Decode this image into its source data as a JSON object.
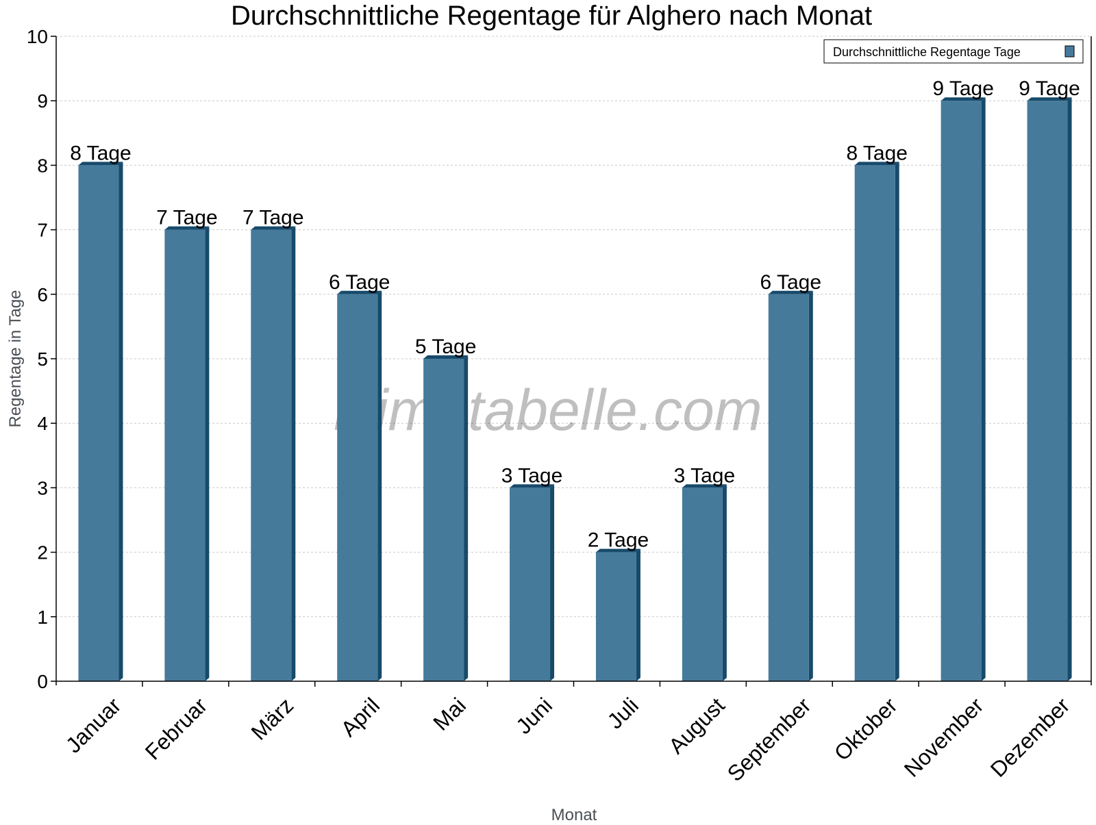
{
  "chart_data": {
    "type": "bar",
    "title": "Durchschnittliche Regentage für Alghero nach Monat",
    "xlabel": "Monat",
    "ylabel": "Regentage in Tage",
    "categories": [
      "Januar",
      "Februar",
      "März",
      "April",
      "Mai",
      "Juni",
      "Juli",
      "August",
      "September",
      "Oktober",
      "November",
      "Dezember"
    ],
    "series": [
      {
        "name": "Durchschnittliche Regentage Tage",
        "values": [
          8,
          7,
          7,
          6,
          5,
          3,
          2,
          3,
          6,
          8,
          9,
          9
        ]
      }
    ],
    "data_labels": [
      "8 Tage",
      "7 Tage",
      "7 Tage",
      "6 Tage",
      "5 Tage",
      "3 Tage",
      "2 Tage",
      "3 Tage",
      "6 Tage",
      "8 Tage",
      "9 Tage",
      "9 Tage"
    ],
    "ylim": [
      0,
      10
    ],
    "yticks": [
      0,
      1,
      2,
      3,
      4,
      5,
      6,
      7,
      8,
      9,
      10
    ],
    "grid": true,
    "legend_position": "top-right",
    "colors": {
      "bar": "#467a9b",
      "bar_side": "#174a6b"
    },
    "watermark": "klimatabelle.com"
  }
}
